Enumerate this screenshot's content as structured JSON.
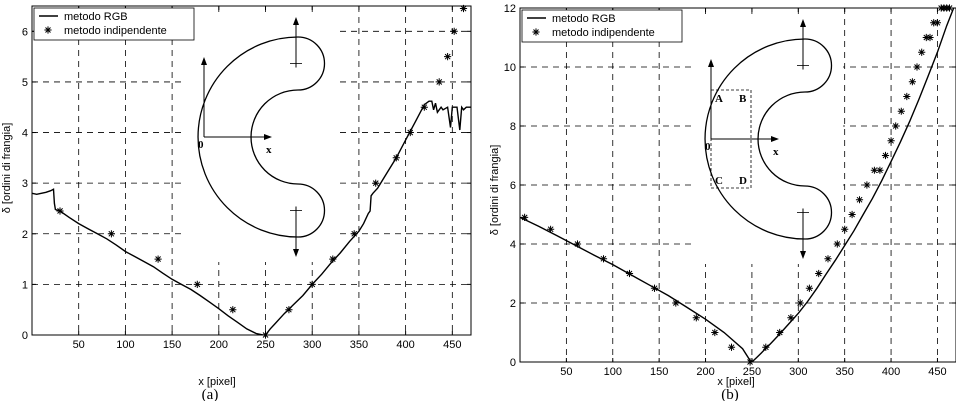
{
  "chart_data": [
    {
      "type": "line",
      "caption": "(a)",
      "xlabel": "x [pixel]",
      "ylabel": "δ [ordini di frangia]",
      "xlim": [
        0,
        470
      ],
      "ylim": [
        0,
        6.5
      ],
      "xticks": [
        50,
        100,
        150,
        200,
        250,
        300,
        350,
        400,
        450
      ],
      "yticks": [
        0,
        1,
        2,
        3,
        4,
        5,
        6
      ],
      "grid": true,
      "legend": "top-left",
      "inset_labels": [
        "0",
        "x"
      ],
      "series": [
        {
          "name": "metodo RGB",
          "style": "solid-line",
          "x": [
            0,
            5,
            10,
            15,
            20,
            23,
            24,
            25,
            30,
            40,
            50,
            60,
            70,
            80,
            90,
            100,
            110,
            120,
            130,
            140,
            150,
            160,
            170,
            180,
            190,
            200,
            210,
            220,
            230,
            240,
            248,
            250,
            255,
            260,
            270,
            280,
            290,
            300,
            310,
            320,
            330,
            340,
            350,
            355,
            360,
            362,
            363,
            365,
            370,
            380,
            390,
            400,
            410,
            420,
            425,
            428,
            430,
            432,
            434,
            436,
            438,
            440,
            445,
            448,
            450,
            452,
            455,
            458,
            460,
            462,
            465,
            470
          ],
          "y": [
            2.8,
            2.78,
            2.8,
            2.82,
            2.85,
            2.88,
            2.6,
            2.48,
            2.45,
            2.32,
            2.2,
            2.1,
            2.0,
            1.9,
            1.78,
            1.65,
            1.55,
            1.45,
            1.35,
            1.22,
            1.1,
            1.0,
            0.9,
            0.78,
            0.65,
            0.52,
            0.38,
            0.25,
            0.12,
            0.03,
            0.0,
            0.0,
            0.12,
            0.22,
            0.42,
            0.6,
            0.78,
            1.0,
            1.2,
            1.42,
            1.62,
            1.85,
            2.05,
            2.2,
            2.4,
            2.45,
            2.75,
            2.8,
            2.9,
            3.2,
            3.5,
            3.85,
            4.2,
            4.55,
            4.62,
            4.62,
            4.45,
            4.58,
            4.4,
            4.45,
            4.5,
            4.45,
            4.5,
            4.1,
            4.5,
            4.5,
            4.5,
            4.05,
            4.5,
            4.45,
            4.5,
            4.5
          ]
        },
        {
          "name": "metodo indipendente",
          "style": "star-markers",
          "x": [
            30,
            85,
            135,
            177,
            215,
            250,
            275,
            300,
            322,
            345,
            368,
            390,
            405,
            420,
            436,
            445,
            452,
            462
          ],
          "y": [
            2.45,
            2.0,
            1.5,
            1.0,
            0.5,
            0.0,
            0.5,
            1.0,
            1.5,
            2.0,
            3.0,
            3.5,
            4.0,
            4.5,
            5.0,
            5.5,
            6.0,
            6.45
          ]
        }
      ]
    },
    {
      "type": "line",
      "caption": "(b)",
      "xlabel": "x [pixel]",
      "ylabel": "δ [ordini di frangia]",
      "xlim": [
        0,
        470
      ],
      "ylim": [
        0,
        12
      ],
      "xticks": [
        50,
        100,
        150,
        200,
        250,
        300,
        350,
        400,
        450
      ],
      "yticks": [
        0,
        2,
        4,
        6,
        8,
        10,
        12
      ],
      "grid": true,
      "legend": "top-left",
      "inset_labels": [
        "0",
        "x",
        "A",
        "B",
        "C",
        "D"
      ],
      "series": [
        {
          "name": "metodo RGB",
          "style": "solid-line",
          "x": [
            0,
            20,
            40,
            60,
            80,
            100,
            120,
            140,
            160,
            180,
            200,
            220,
            240,
            248,
            250,
            255,
            260,
            270,
            280,
            290,
            300,
            310,
            320,
            330,
            340,
            350,
            360,
            370,
            380,
            390,
            400,
            410,
            420,
            430,
            440,
            450,
            460,
            470
          ],
          "y": [
            4.9,
            4.6,
            4.28,
            3.95,
            3.62,
            3.3,
            2.95,
            2.6,
            2.25,
            1.85,
            1.45,
            1.0,
            0.45,
            0.05,
            0.0,
            0.15,
            0.3,
            0.62,
            0.95,
            1.3,
            1.65,
            2.05,
            2.5,
            2.98,
            3.45,
            3.95,
            4.45,
            5.0,
            5.55,
            6.15,
            6.8,
            7.45,
            8.15,
            8.9,
            9.7,
            10.5,
            11.4,
            12.2
          ]
        },
        {
          "name": "metodo indipendente",
          "style": "star-markers",
          "x": [
            5,
            33,
            62,
            90,
            118,
            145,
            168,
            190,
            210,
            228,
            248,
            265,
            280,
            292,
            302,
            312,
            322,
            332,
            342,
            350,
            358,
            366,
            374,
            382,
            388,
            394,
            400,
            405,
            411,
            417,
            423,
            428,
            433,
            438,
            442,
            446,
            450,
            454,
            457,
            460,
            463
          ],
          "y": [
            4.9,
            4.5,
            4.0,
            3.5,
            3.0,
            2.5,
            2.0,
            1.5,
            1.0,
            0.5,
            0.0,
            0.5,
            1.0,
            1.5,
            2.0,
            2.5,
            3.0,
            3.5,
            4.0,
            4.5,
            5.0,
            5.5,
            6.0,
            6.5,
            6.5,
            7.0,
            7.5,
            8.0,
            8.5,
            9.0,
            9.5,
            10.0,
            10.5,
            11.0,
            11.0,
            11.5,
            11.5,
            12.0,
            12.0,
            12.0,
            12.0
          ]
        }
      ]
    }
  ]
}
